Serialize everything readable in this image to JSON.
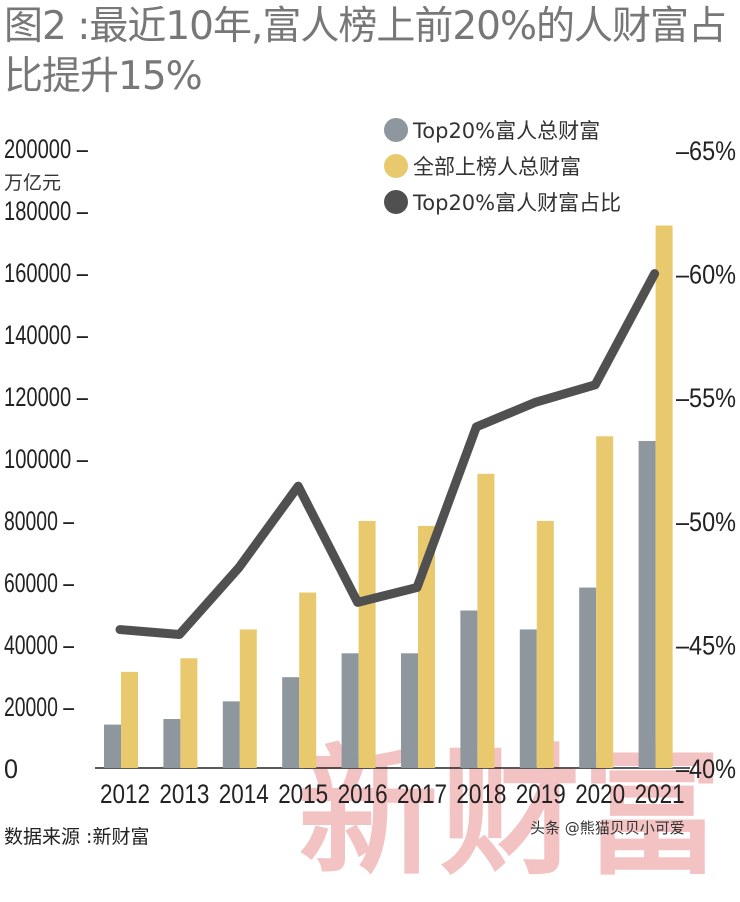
{
  "title": "图2 :最近10年,富人榜上前20%的人财富占比提升15%",
  "source": "数据来源 :新财富",
  "credit": "头条 @熊猫贝贝小可爱",
  "watermark": "新财富",
  "chart_data": {
    "type": "bar+line",
    "categories": [
      "2012",
      "2013",
      "2014",
      "2015",
      "2016",
      "2017",
      "2018",
      "2019",
      "2020",
      "2021"
    ],
    "series": [
      {
        "name": "Top20%富人总财富",
        "type": "bar",
        "axis": "left",
        "color": "#8e979e",
        "values": [
          14000,
          15800,
          21500,
          29300,
          37000,
          37000,
          50800,
          44700,
          58200,
          105500
        ]
      },
      {
        "name": "全部上榜人总财富",
        "type": "bar",
        "axis": "left",
        "color": "#e8c96e",
        "values": [
          31000,
          35400,
          44700,
          56600,
          79700,
          78100,
          94900,
          79700,
          107000,
          175000
        ]
      },
      {
        "name": "Top20%富人财富占比",
        "type": "line",
        "axis": "right",
        "color": "#505050",
        "values": [
          45.6,
          45.4,
          48.1,
          51.4,
          46.7,
          47.3,
          53.8,
          54.8,
          55.5,
          60.0
        ]
      }
    ],
    "ylabel_left": "万亿元",
    "ylim_left": [
      0,
      200000
    ],
    "yticks_left": [
      "0",
      "20000",
      "40000",
      "60000",
      "80000",
      "100000",
      "120000",
      "140000",
      "160000",
      "180000",
      "200000"
    ],
    "ylim_right": [
      40,
      65
    ],
    "yticks_right": [
      "40%",
      "45%",
      "50%",
      "55%",
      "60%",
      "65%"
    ],
    "grid": false,
    "legend": "top-right"
  }
}
